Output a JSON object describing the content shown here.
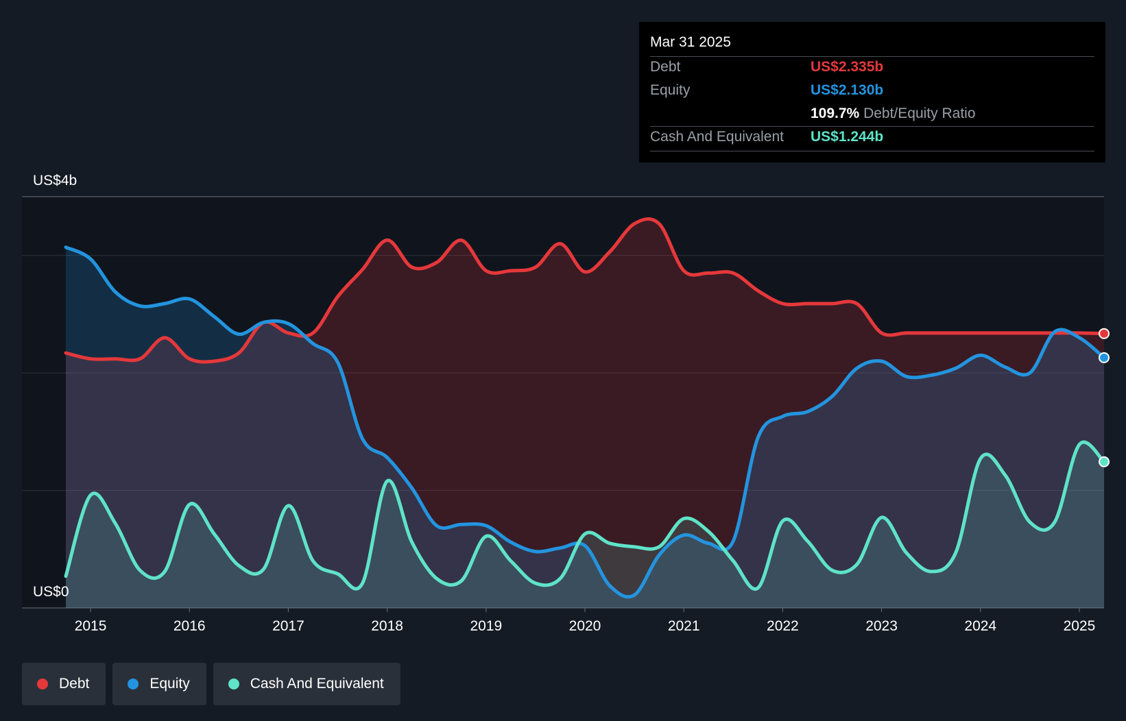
{
  "tooltip": {
    "date": "Mar 31 2025",
    "debt_label": "Debt",
    "debt_value": "US$2.335b",
    "equity_label": "Equity",
    "equity_value": "US$2.130b",
    "ratio_value": "109.7%",
    "ratio_label": "Debt/Equity Ratio",
    "cash_label": "Cash And Equivalent",
    "cash_value": "US$1.244b"
  },
  "legend": {
    "debt": "Debt",
    "equity": "Equity",
    "cash": "Cash And Equivalent"
  },
  "colors": {
    "debt": "#e5383b",
    "equity": "#2394df",
    "cash": "#5fe3c8",
    "background": "#151b24"
  },
  "chart_data": {
    "type": "area",
    "y_top_label": "US$4b",
    "y_bottom_label": "US$0",
    "ylim": [
      0,
      3.5
    ],
    "xlim": [
      2014.75,
      2025.25
    ],
    "x_ticks": [
      2015,
      2016,
      2017,
      2018,
      2019,
      2020,
      2021,
      2022,
      2023,
      2024,
      2025
    ],
    "x_tick_labels": [
      "2015",
      "2016",
      "2017",
      "2018",
      "2019",
      "2020",
      "2021",
      "2022",
      "2023",
      "2024",
      "2025"
    ],
    "grid": true,
    "legend_position": "bottom-left",
    "series": [
      {
        "name": "Debt",
        "x": [
          2014.75,
          2015.0,
          2015.25,
          2015.5,
          2015.75,
          2016.0,
          2016.25,
          2016.5,
          2016.75,
          2017.0,
          2017.25,
          2017.5,
          2017.75,
          2018.0,
          2018.25,
          2018.5,
          2018.75,
          2019.0,
          2019.25,
          2019.5,
          2019.75,
          2020.0,
          2020.25,
          2020.5,
          2020.75,
          2021.0,
          2021.25,
          2021.5,
          2021.75,
          2022.0,
          2022.25,
          2022.5,
          2022.75,
          2023.0,
          2023.25,
          2023.5,
          2023.75,
          2024.0,
          2024.25,
          2024.5,
          2024.75,
          2025.0,
          2025.25
        ],
        "values": [
          2.17,
          2.12,
          2.12,
          2.12,
          2.3,
          2.12,
          2.1,
          2.17,
          2.43,
          2.34,
          2.34,
          2.65,
          2.88,
          3.13,
          2.9,
          2.94,
          3.13,
          2.87,
          2.87,
          2.9,
          3.1,
          2.86,
          3.03,
          3.27,
          3.27,
          2.87,
          2.85,
          2.85,
          2.7,
          2.59,
          2.59,
          2.59,
          2.59,
          2.34,
          2.34,
          2.34,
          2.34,
          2.34,
          2.34,
          2.34,
          2.34,
          2.34,
          2.335
        ]
      },
      {
        "name": "Equity",
        "x": [
          2014.75,
          2015.0,
          2015.25,
          2015.5,
          2015.75,
          2016.0,
          2016.25,
          2016.5,
          2016.75,
          2017.0,
          2017.25,
          2017.5,
          2017.75,
          2018.0,
          2018.25,
          2018.5,
          2018.75,
          2019.0,
          2019.25,
          2019.5,
          2019.75,
          2020.0,
          2020.25,
          2020.5,
          2020.75,
          2021.0,
          2021.25,
          2021.5,
          2021.75,
          2022.0,
          2022.25,
          2022.5,
          2022.75,
          2023.0,
          2023.25,
          2023.5,
          2023.75,
          2024.0,
          2024.25,
          2024.5,
          2024.75,
          2025.0,
          2025.25
        ],
        "values": [
          3.07,
          2.97,
          2.69,
          2.57,
          2.59,
          2.63,
          2.48,
          2.33,
          2.43,
          2.42,
          2.25,
          2.09,
          1.44,
          1.28,
          1.02,
          0.7,
          0.71,
          0.7,
          0.56,
          0.48,
          0.51,
          0.53,
          0.19,
          0.11,
          0.45,
          0.62,
          0.55,
          0.57,
          1.45,
          1.63,
          1.67,
          1.8,
          2.04,
          2.1,
          1.97,
          1.98,
          2.04,
          2.15,
          2.05,
          2.0,
          2.35,
          2.3,
          2.13
        ]
      },
      {
        "name": "Cash And Equivalent",
        "x": [
          2014.75,
          2015.0,
          2015.25,
          2015.5,
          2015.75,
          2016.0,
          2016.25,
          2016.5,
          2016.75,
          2017.0,
          2017.25,
          2017.5,
          2017.75,
          2018.0,
          2018.25,
          2018.5,
          2018.75,
          2019.0,
          2019.25,
          2019.5,
          2019.75,
          2020.0,
          2020.25,
          2020.5,
          2020.75,
          2021.0,
          2021.25,
          2021.5,
          2021.75,
          2022.0,
          2022.25,
          2022.5,
          2022.75,
          2023.0,
          2023.25,
          2023.5,
          2023.75,
          2024.0,
          2024.25,
          2024.5,
          2024.75,
          2025.0,
          2025.25
        ],
        "values": [
          0.27,
          0.96,
          0.72,
          0.32,
          0.31,
          0.88,
          0.63,
          0.36,
          0.33,
          0.87,
          0.4,
          0.29,
          0.21,
          1.08,
          0.56,
          0.25,
          0.23,
          0.61,
          0.4,
          0.21,
          0.25,
          0.63,
          0.55,
          0.52,
          0.52,
          0.76,
          0.65,
          0.4,
          0.17,
          0.74,
          0.57,
          0.32,
          0.37,
          0.77,
          0.47,
          0.31,
          0.47,
          1.27,
          1.13,
          0.73,
          0.73,
          1.39,
          1.244
        ]
      }
    ]
  }
}
